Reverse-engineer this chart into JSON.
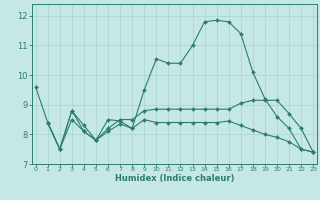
{
  "xlabel": "Humidex (Indice chaleur)",
  "xlim": [
    -0.3,
    23.3
  ],
  "ylim": [
    7,
    12.4
  ],
  "yticks": [
    7,
    8,
    9,
    10,
    11,
    12
  ],
  "xticks": [
    0,
    1,
    2,
    3,
    4,
    5,
    6,
    7,
    8,
    9,
    10,
    11,
    12,
    13,
    14,
    15,
    16,
    17,
    18,
    19,
    20,
    21,
    22,
    23
  ],
  "background_color": "#c5e8e5",
  "line_color": "#2e7b72",
  "grid_color": "#a8d4cf",
  "line1_x": [
    0,
    1,
    2,
    3,
    4,
    5,
    6,
    7,
    8,
    9,
    10,
    11,
    12,
    13,
    14,
    15,
    16,
    17,
    18,
    19,
    20,
    21,
    22,
    23
  ],
  "line1_y": [
    9.6,
    8.4,
    7.5,
    8.8,
    8.3,
    7.8,
    8.5,
    8.45,
    8.2,
    9.5,
    10.55,
    10.4,
    10.4,
    11.0,
    11.8,
    11.85,
    11.8,
    11.4,
    10.1,
    9.2,
    8.6,
    8.2,
    7.5,
    7.4
  ],
  "line2_x": [
    1,
    2,
    3,
    4,
    5,
    6,
    7,
    8,
    9,
    10,
    11,
    12,
    13,
    14,
    15,
    16,
    17,
    18,
    19,
    20,
    21,
    22,
    23
  ],
  "line2_y": [
    8.4,
    7.5,
    8.8,
    8.1,
    7.8,
    8.1,
    8.35,
    8.2,
    8.5,
    8.4,
    8.4,
    8.4,
    8.4,
    8.4,
    8.4,
    8.45,
    8.3,
    8.15,
    8.0,
    7.9,
    7.75,
    7.5,
    7.4
  ],
  "line3_x": [
    1,
    2,
    3,
    4,
    5,
    6,
    7,
    8,
    9,
    10,
    11,
    12,
    13,
    14,
    15,
    16,
    17,
    18,
    19,
    20,
    21,
    22,
    23
  ],
  "line3_y": [
    8.4,
    7.5,
    8.5,
    8.1,
    7.8,
    8.2,
    8.5,
    8.5,
    8.8,
    8.85,
    8.85,
    8.85,
    8.85,
    8.85,
    8.85,
    8.85,
    9.05,
    9.15,
    9.15,
    9.15,
    8.7,
    8.2,
    7.4
  ]
}
